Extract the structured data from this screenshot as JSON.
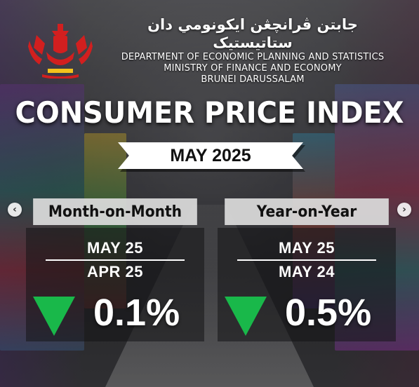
{
  "header": {
    "jawi_title": "جابتن ڤرانچڠن ايكونومي دان ستاتيستيک",
    "department": "DEPARTMENT OF ECONOMIC PLANNING AND STATISTICS",
    "ministry": "MINISTRY OF FINANCE AND ECONOMY",
    "country": "BRUNEI DARUSSALAM"
  },
  "main": {
    "title": "CONSUMER PRICE INDEX",
    "period": "MAY 2025"
  },
  "panels": [
    {
      "heading": "Month-on-Month",
      "current": "MAY 25",
      "previous": "APR 25",
      "change": "0.1%",
      "direction": "down",
      "direction_icon": "down-triangle-icon"
    },
    {
      "heading": "Year-on-Year",
      "current": "MAY 25",
      "previous": "MAY 24",
      "change": "0.5%",
      "direction": "down",
      "direction_icon": "down-triangle-icon"
    }
  ],
  "carousel": {
    "prev_label": "‹",
    "next_label": "›"
  },
  "colors": {
    "accent_green": "#19b84a",
    "crest_red": "#d21f1f",
    "crest_gold": "#f3c21c"
  }
}
